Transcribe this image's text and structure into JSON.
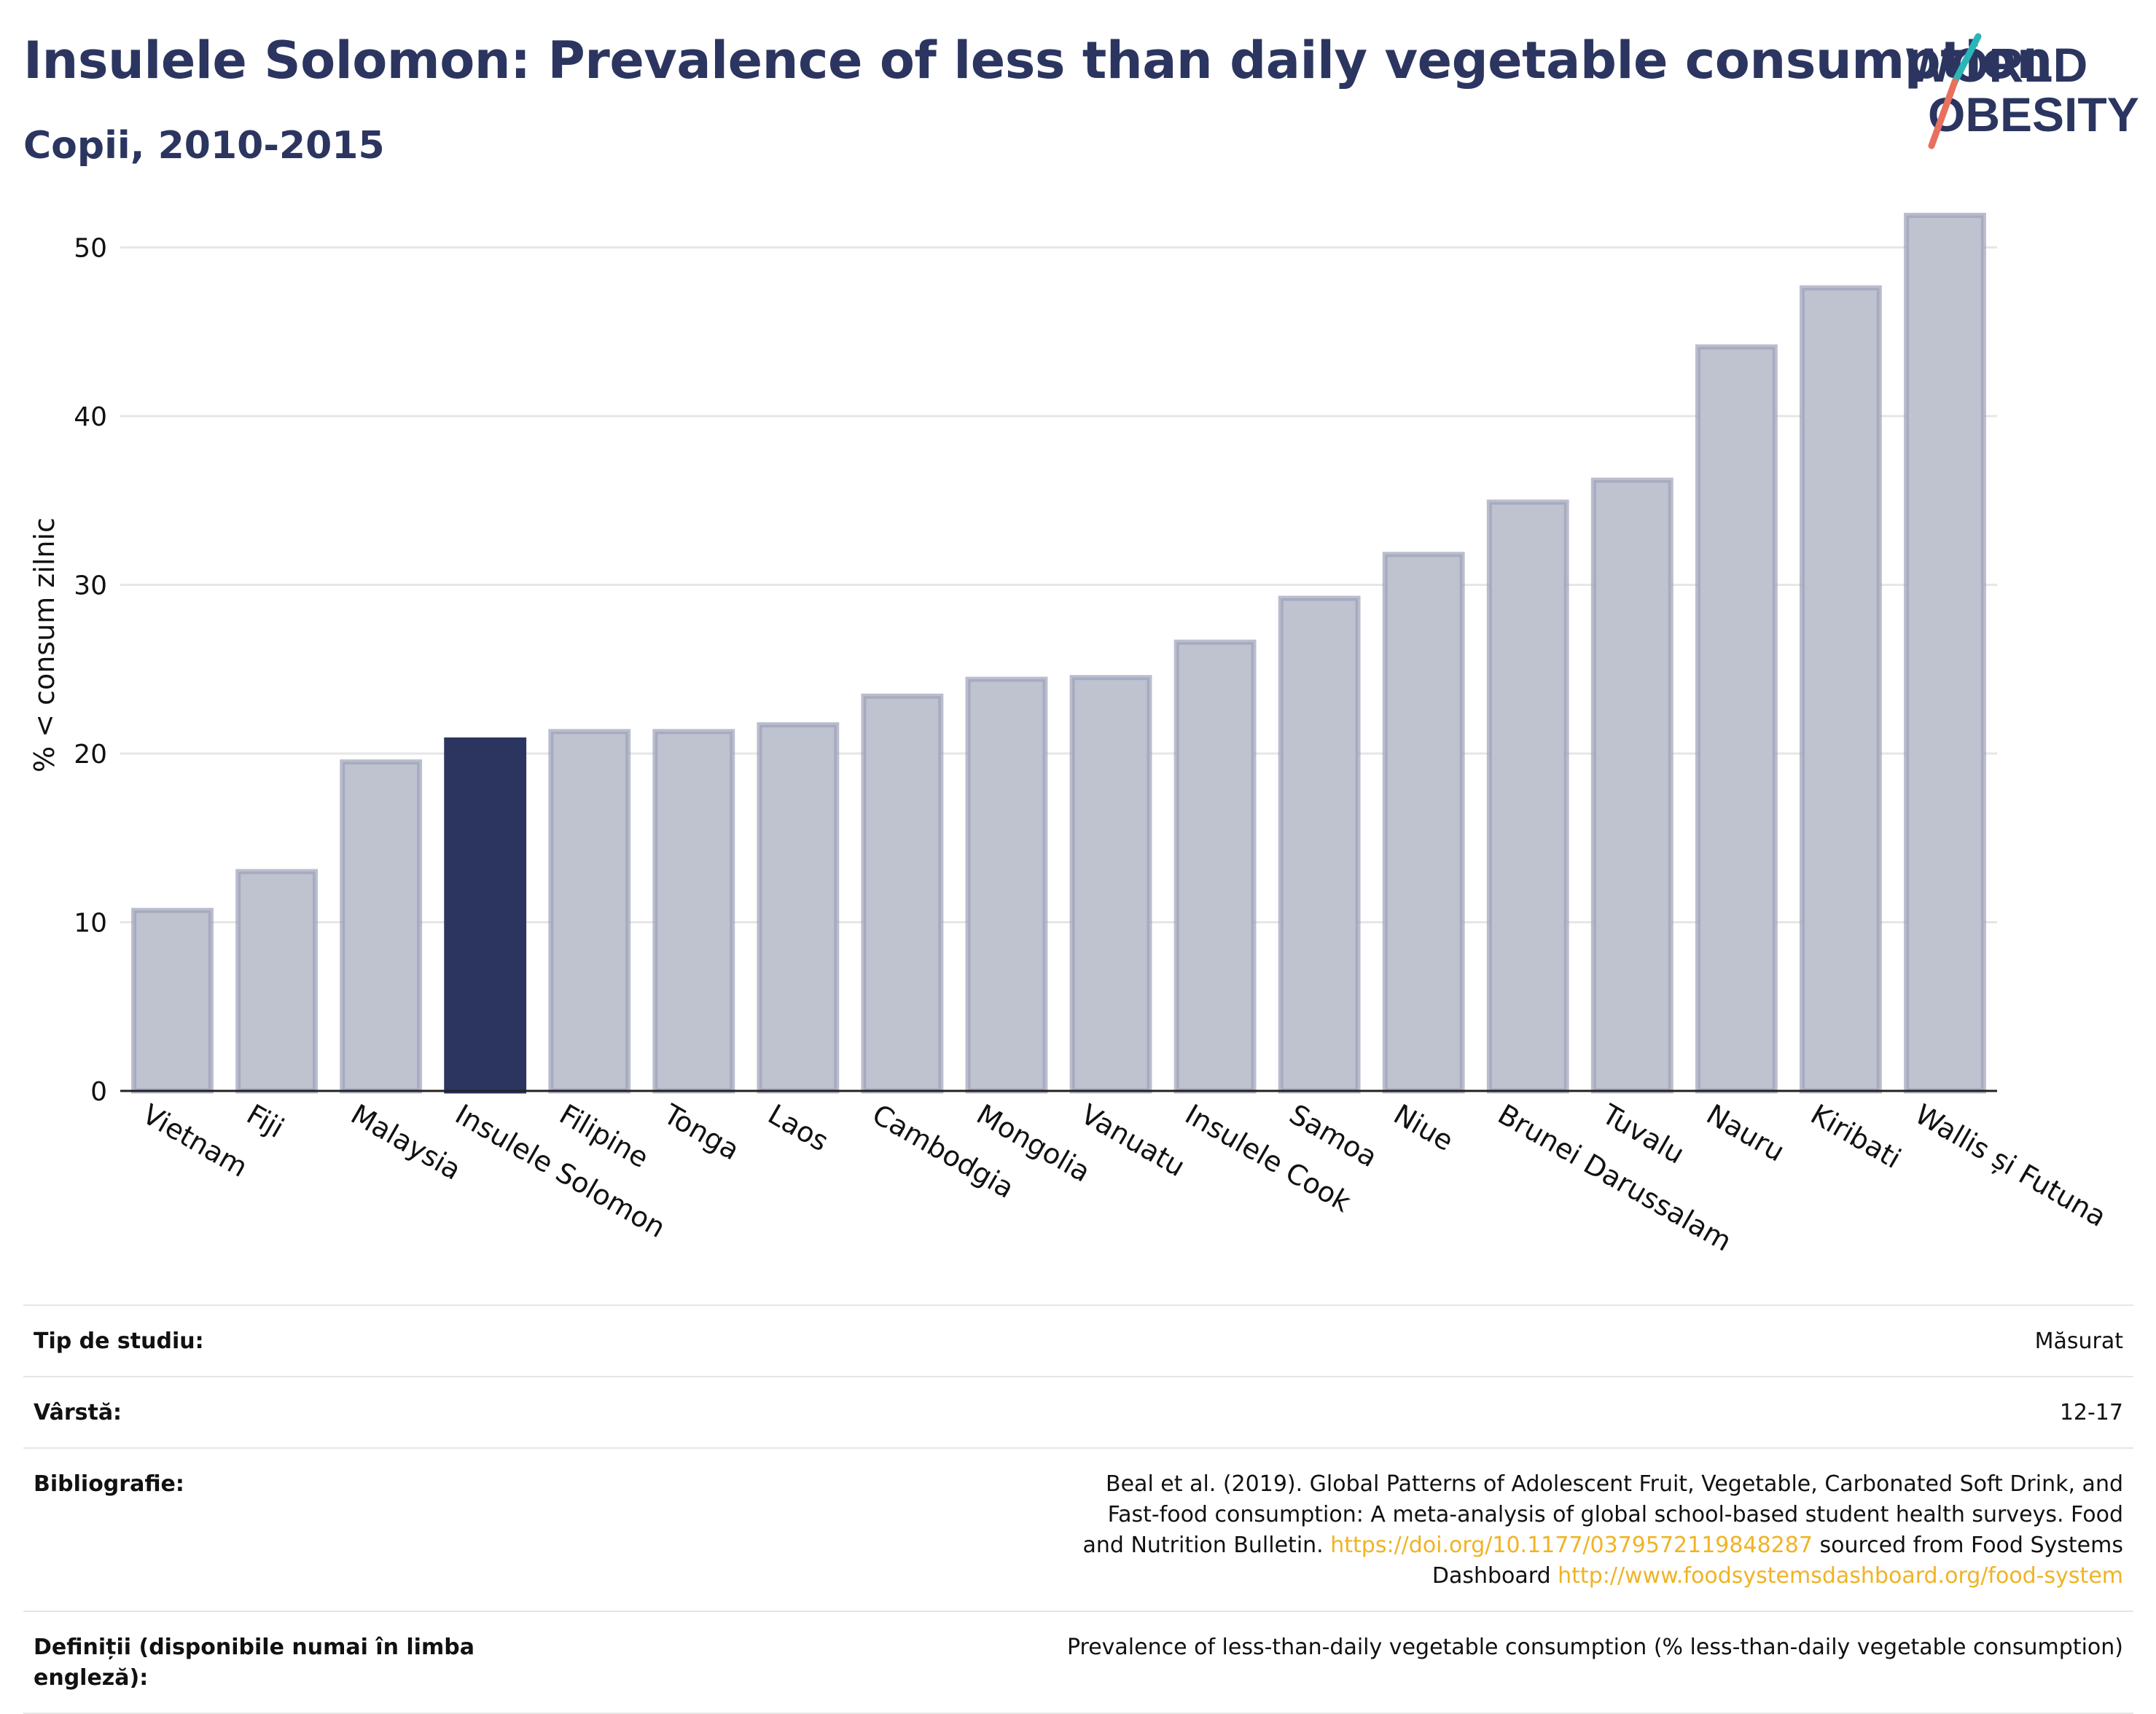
{
  "header": {
    "title": "Insulele Solomon: Prevalence of less than daily vegetable consumption",
    "subtitle": "Copii, 2010-2015"
  },
  "logo": {
    "line1": "WORLD",
    "line2": "OBESITY"
  },
  "colors": {
    "highlight": "#2b3560",
    "bar": "#bfc2cf",
    "bar_stroke": "#9ca1b8",
    "grid": "#e6e6e6",
    "accent_teal": "#2bb5b8",
    "accent_coral": "#e8705f"
  },
  "chart_data": {
    "type": "bar",
    "ylabel": "% < consum zilnic",
    "ylim": [
      0,
      53
    ],
    "yticks": [
      0,
      10,
      20,
      30,
      40,
      50
    ],
    "grid": true,
    "highlight": "Insulele Solomon",
    "categories": [
      "Vietnam",
      "Fiji",
      "Malaysia",
      "Insulele Solomon",
      "Filipine",
      "Tonga",
      "Laos",
      "Cambodgia",
      "Mongolia",
      "Vanuatu",
      "Insulele Cook",
      "Samoa",
      "Niue",
      "Brunei Darussalam",
      "Tuvalu",
      "Nauru",
      "Kiribati",
      "Wallis și Futuna"
    ],
    "values": [
      10.7,
      13.0,
      19.5,
      20.8,
      21.3,
      21.3,
      21.7,
      23.4,
      24.4,
      24.5,
      26.6,
      29.2,
      31.8,
      34.9,
      36.2,
      44.1,
      47.6,
      51.9
    ]
  },
  "meta": {
    "study_type_label": "Tip de studiu:",
    "study_type_value": "Măsurat",
    "age_label": "Vârstă:",
    "age_value": "12-17",
    "bibliography_label": "Bibliografie:",
    "bibliography_text1": "Beal et al. (2019). Global Patterns of Adolescent Fruit, Vegetable, Carbonated Soft Drink, and Fast-food consumption: A meta-analysis of global school-based student health surveys. Food and Nutrition Bulletin. ",
    "bibliography_link1": "https://doi.org/10.1177/0379572119848287",
    "bibliography_text2": " sourced from Food Systems Dashboard ",
    "bibliography_link2": "http://www.foodsystemsdashboard.org/food-system",
    "definitions_label": "Definiții (disponibile numai în limba engleză):",
    "definitions_value": "Prevalence of less-than-daily vegetable consumption (% less-than-daily vegetable consumption)"
  }
}
